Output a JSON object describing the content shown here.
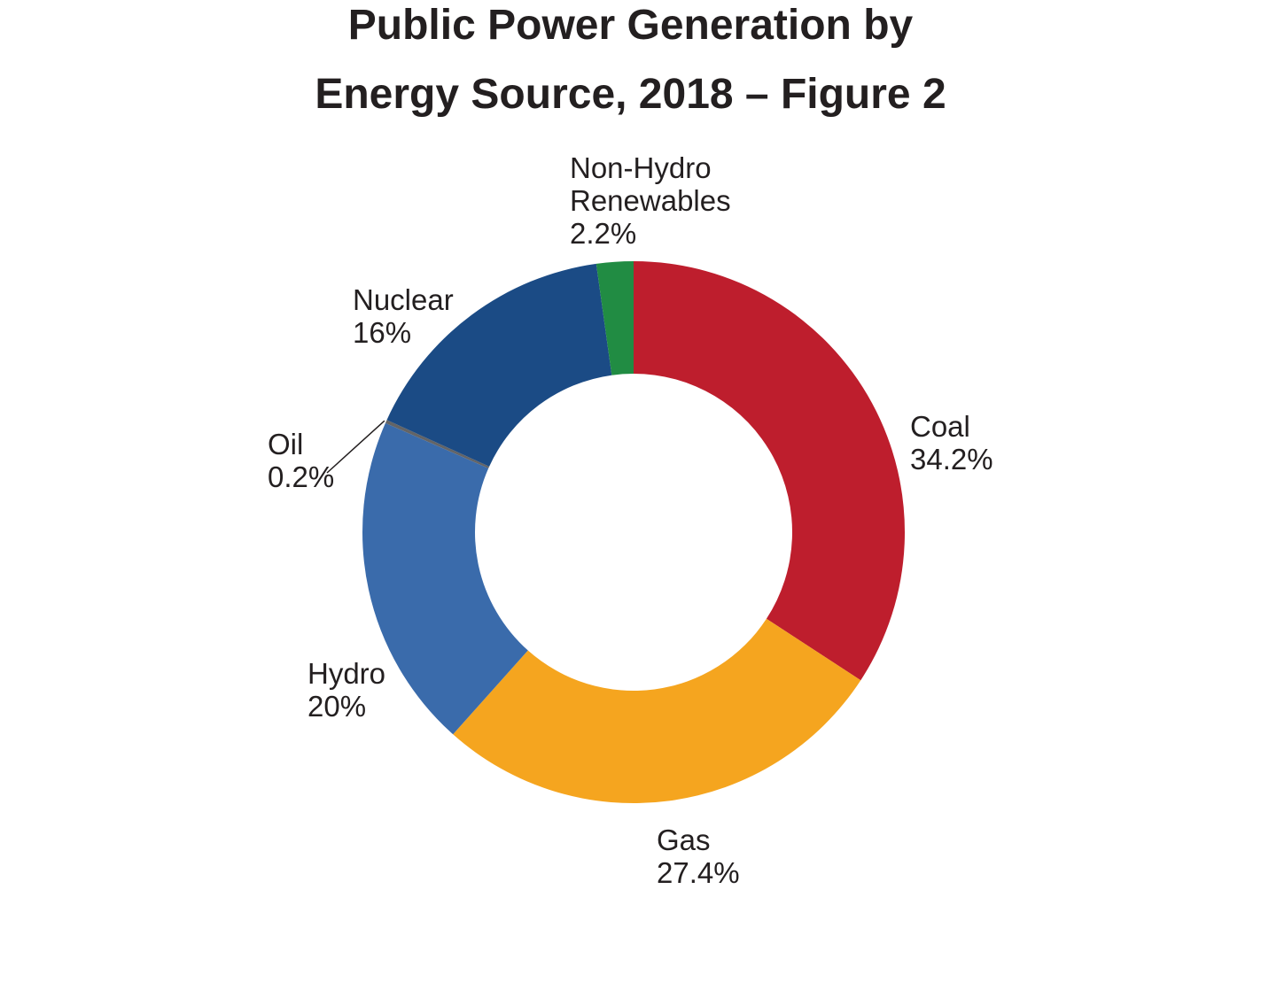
{
  "chart_data": {
    "type": "pie",
    "donut": true,
    "title_lines": [
      "Public Power Generation by",
      "Energy Source, 2018 – Figure 2"
    ],
    "start_angle_deg": 0,
    "direction": "clockwise",
    "slices": [
      {
        "name": "Coal",
        "label_lines": [
          "Coal"
        ],
        "value": 34.2,
        "value_label": "34.2%",
        "color": "#be1e2d"
      },
      {
        "name": "Gas",
        "label_lines": [
          "Gas"
        ],
        "value": 27.4,
        "value_label": "27.4%",
        "color": "#f5a51f"
      },
      {
        "name": "Hydro",
        "label_lines": [
          "Hydro"
        ],
        "value": 20,
        "value_label": "20%",
        "color": "#3a6bab"
      },
      {
        "name": "Oil",
        "label_lines": [
          "Oil"
        ],
        "value": 0.2,
        "value_label": "0.2%",
        "color": "#636466"
      },
      {
        "name": "Nuclear",
        "label_lines": [
          "Nuclear"
        ],
        "value": 16,
        "value_label": "16%",
        "color": "#1b4b85"
      },
      {
        "name": "Non-Hydro Renewables",
        "label_lines": [
          "Non-Hydro",
          "Renewables"
        ],
        "value": 2.2,
        "value_label": "2.2%",
        "color": "#218c43"
      }
    ]
  }
}
